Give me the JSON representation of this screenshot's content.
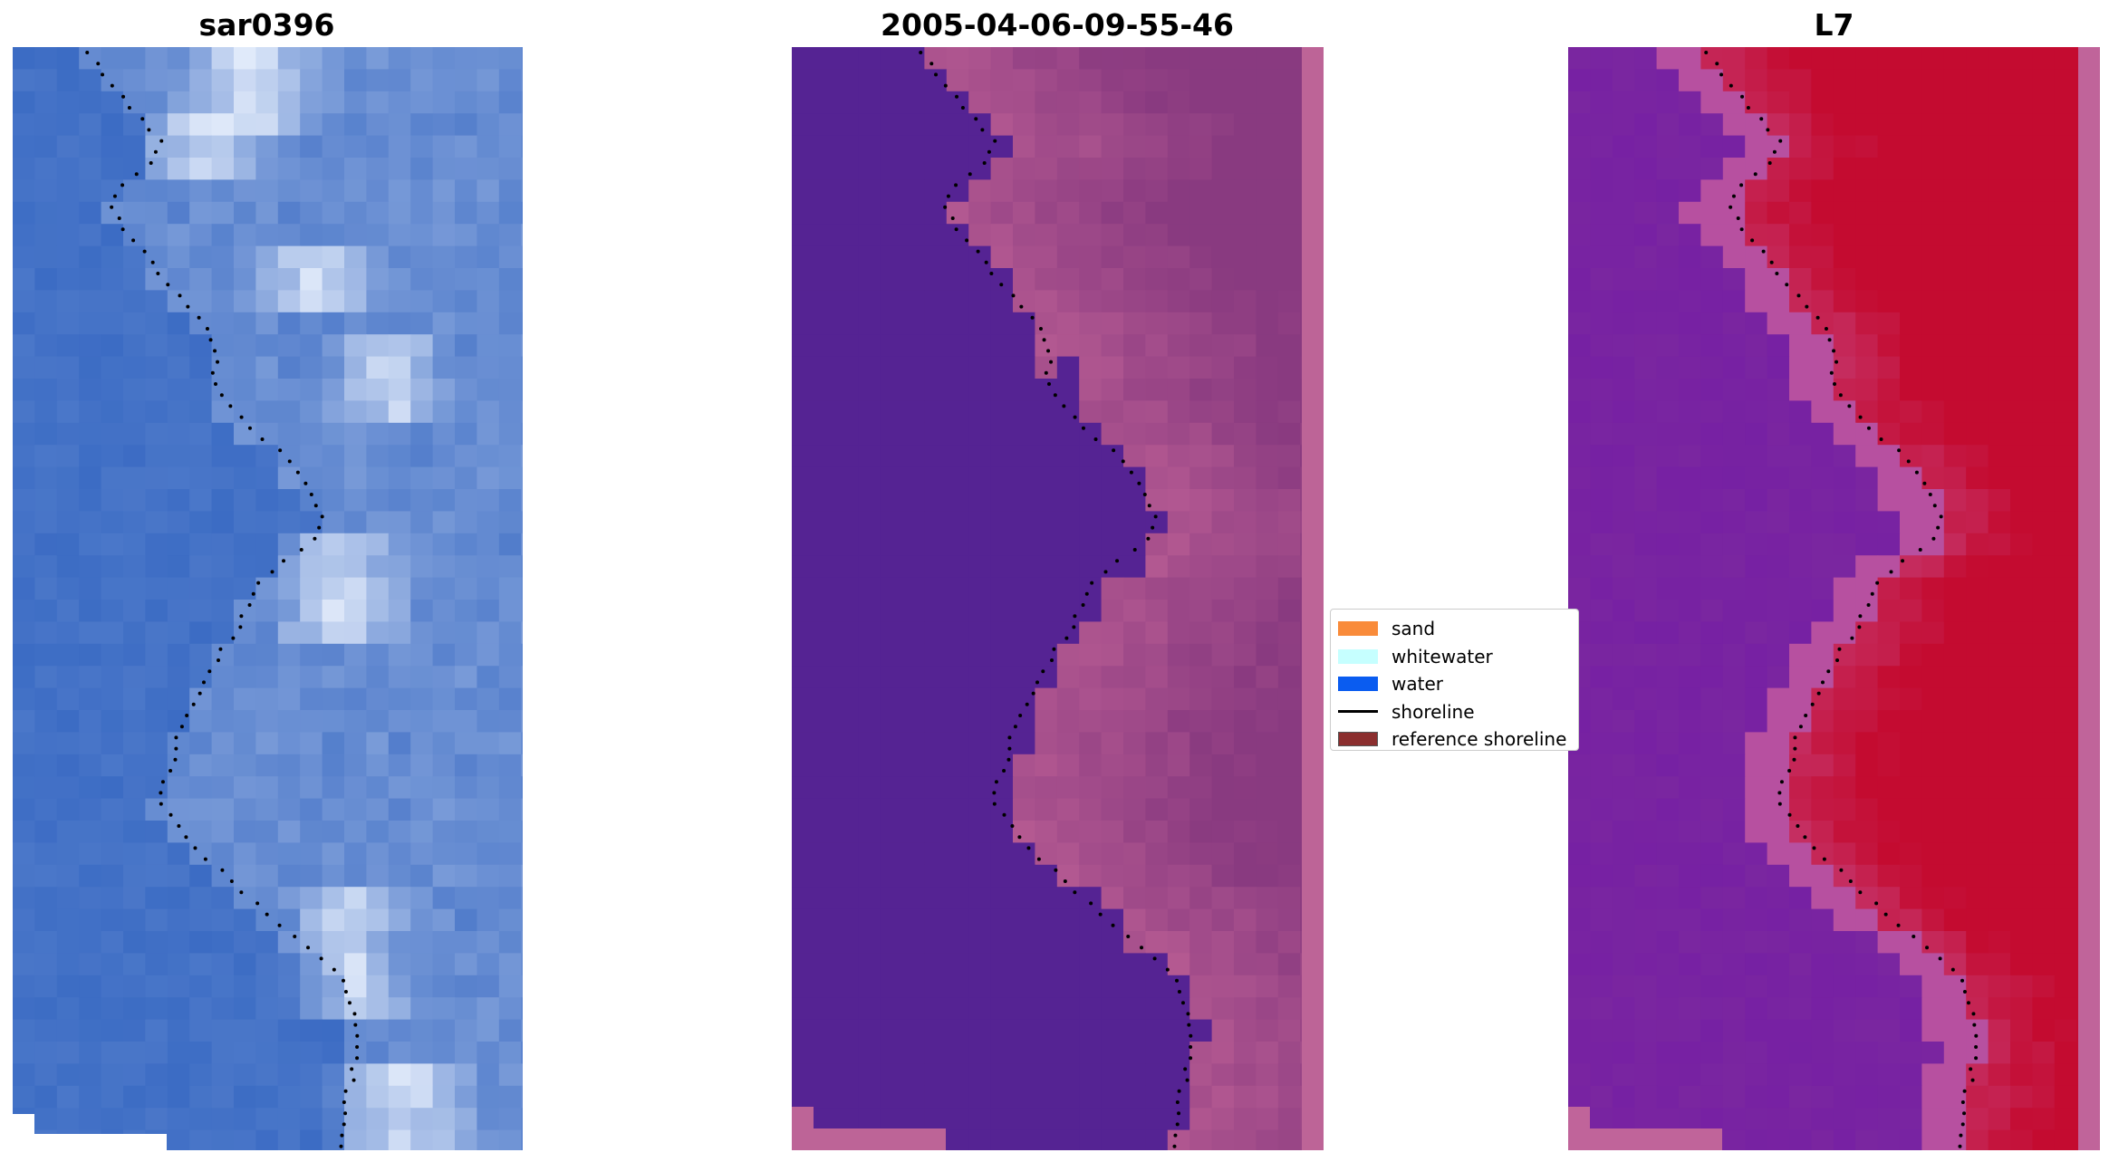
{
  "panels": [
    {
      "title": "sar0396",
      "colormap": "rgb-image"
    },
    {
      "title": "2005-04-06-09-55-46",
      "colormap": "classified"
    },
    {
      "title": "L7",
      "colormap": "index"
    }
  ],
  "legend": {
    "items": [
      {
        "label": "sand",
        "color": "#f98b3a",
        "kind": "patch"
      },
      {
        "label": "whitewater",
        "color": "#c6ffff",
        "kind": "patch"
      },
      {
        "label": "water",
        "color": "#0a5cf0",
        "kind": "patch"
      },
      {
        "label": "shoreline",
        "color": "#000000",
        "kind": "line"
      },
      {
        "label": "reference shoreline",
        "color": "#8b2e2e",
        "kind": "patch"
      }
    ]
  },
  "colors": {
    "classified_water": "#552393",
    "classified_sand": "#b55a92",
    "classified_border": "#bd6497",
    "index_low": "#7a26a0",
    "index_high": "#c40b30",
    "index_border": "#c0649a",
    "rgb_base": "#3c6cc4",
    "rgb_bright": "#f0f6ff"
  }
}
